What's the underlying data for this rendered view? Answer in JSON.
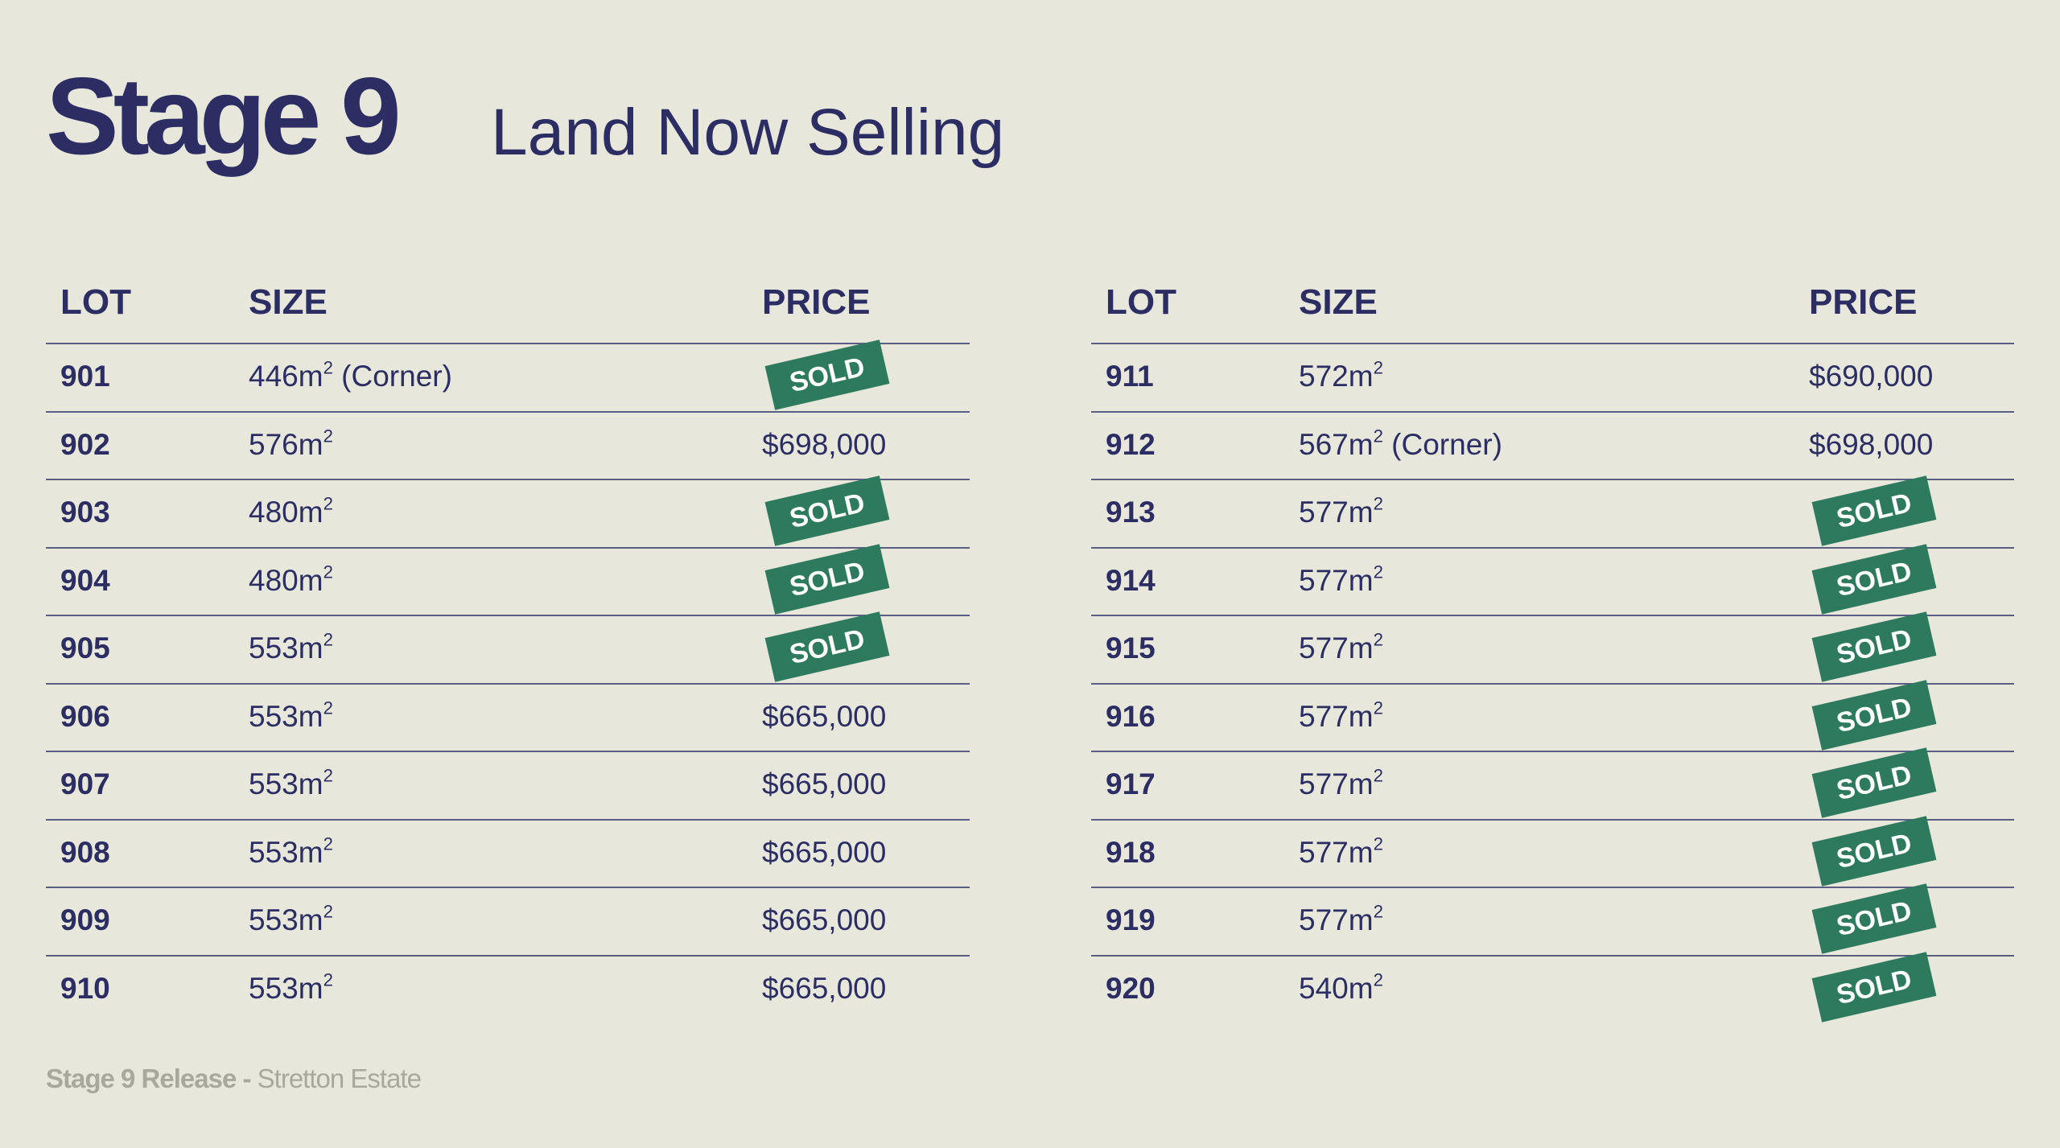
{
  "header": {
    "title": "Stage 9",
    "subtitle": "Land Now Selling"
  },
  "table_headers": {
    "lot": "LOT",
    "size": "SIZE",
    "price": "PRICE"
  },
  "sold_label": "SOLD",
  "superscript": "2",
  "left_table": [
    {
      "lot": "901",
      "size": "446m",
      "size_suffix": " (Corner)",
      "price": "",
      "sold": true
    },
    {
      "lot": "902",
      "size": "576m",
      "size_suffix": "",
      "price": "$698,000",
      "sold": false
    },
    {
      "lot": "903",
      "size": "480m",
      "size_suffix": "",
      "price": "",
      "sold": true
    },
    {
      "lot": "904",
      "size": "480m",
      "size_suffix": "",
      "price": "",
      "sold": true
    },
    {
      "lot": "905",
      "size": "553m",
      "size_suffix": "",
      "price": "",
      "sold": true
    },
    {
      "lot": "906",
      "size": "553m",
      "size_suffix": "",
      "price": "$665,000",
      "sold": false
    },
    {
      "lot": "907",
      "size": "553m",
      "size_suffix": "",
      "price": "$665,000",
      "sold": false
    },
    {
      "lot": "908",
      "size": "553m",
      "size_suffix": "",
      "price": "$665,000",
      "sold": false
    },
    {
      "lot": "909",
      "size": "553m",
      "size_suffix": "",
      "price": "$665,000",
      "sold": false
    },
    {
      "lot": "910",
      "size": "553m",
      "size_suffix": "",
      "price": "$665,000",
      "sold": false
    }
  ],
  "right_table": [
    {
      "lot": "911",
      "size": "572m",
      "size_suffix": "",
      "price": "$690,000",
      "sold": false
    },
    {
      "lot": "912",
      "size": "567m",
      "size_suffix": " (Corner)",
      "price": "$698,000",
      "sold": false
    },
    {
      "lot": "913",
      "size": "577m",
      "size_suffix": "",
      "price": "",
      "sold": true
    },
    {
      "lot": "914",
      "size": "577m",
      "size_suffix": "",
      "price": "",
      "sold": true
    },
    {
      "lot": "915",
      "size": "577m",
      "size_suffix": "",
      "price": "",
      "sold": true
    },
    {
      "lot": "916",
      "size": "577m",
      "size_suffix": "",
      "price": "",
      "sold": true
    },
    {
      "lot": "917",
      "size": "577m",
      "size_suffix": "",
      "price": "",
      "sold": true
    },
    {
      "lot": "918",
      "size": "577m",
      "size_suffix": "",
      "price": "",
      "sold": true
    },
    {
      "lot": "919",
      "size": "577m",
      "size_suffix": "",
      "price": "",
      "sold": true
    },
    {
      "lot": "920",
      "size": "540m",
      "size_suffix": "",
      "price": "",
      "sold": true
    }
  ],
  "footer": {
    "release": "Stage 9 Release -",
    "estate": " Stretton Estate"
  }
}
